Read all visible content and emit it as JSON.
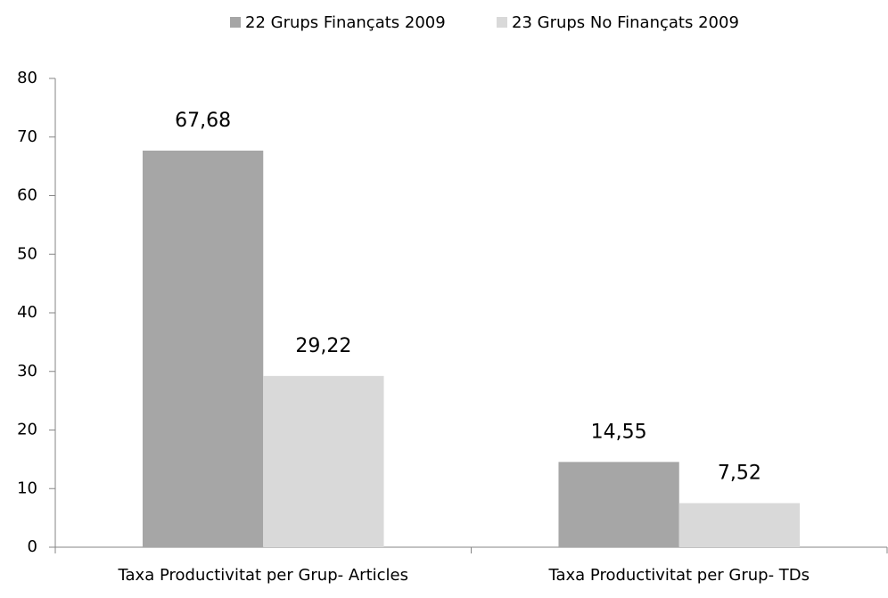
{
  "chart_data": {
    "type": "bar",
    "categories": [
      "Taxa Productivitat per Grup- Articles",
      "Taxa Productivitat per Grup- TDs"
    ],
    "series": [
      {
        "name": "22 Grups Finançats 2009",
        "color": "#a6a6a6",
        "values": [
          67.68,
          14.55
        ],
        "value_labels": [
          "67,68",
          "14,55"
        ]
      },
      {
        "name": "23 Grups No Finançats 2009",
        "color": "#d9d9d9",
        "values": [
          29.22,
          7.52
        ],
        "value_labels": [
          "29,22",
          "7,52"
        ]
      }
    ],
    "ylim": [
      0,
      80
    ],
    "yticks": [
      0,
      10,
      20,
      30,
      40,
      50,
      60,
      70,
      80
    ],
    "grid": false,
    "legend": "top"
  }
}
